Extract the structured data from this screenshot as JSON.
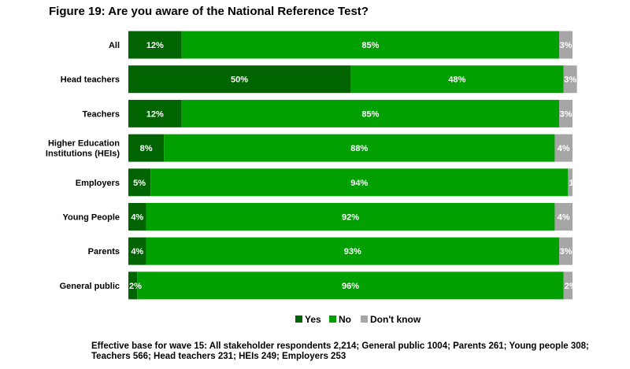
{
  "chart_data": {
    "type": "bar",
    "orientation": "horizontal",
    "stacked": true,
    "percent": true,
    "title": "Figure 19: Are you aware of the National Reference Test?",
    "categories": [
      [
        "All"
      ],
      [
        "Head teachers"
      ],
      [
        "Teachers"
      ],
      [
        "Higher Education",
        "Institutions (HEIs)"
      ],
      [
        "Employers"
      ],
      [
        "Young People"
      ],
      [
        "Parents"
      ],
      [
        "General public"
      ]
    ],
    "series": [
      {
        "name": "Yes",
        "color": "#006400",
        "values": [
          12,
          50,
          12,
          8,
          5,
          4,
          4,
          2
        ],
        "labels": [
          "12%",
          "50%",
          "12%",
          "8%",
          "5%",
          "4%",
          "4%",
          "2%"
        ]
      },
      {
        "name": "No",
        "color": "#00a000",
        "values": [
          85,
          48,
          85,
          88,
          94,
          92,
          93,
          96
        ],
        "labels": [
          "85%",
          "48%",
          "85%",
          "88%",
          "94%",
          "92%",
          "93%",
          "96%"
        ]
      },
      {
        "name": "Don't know",
        "color": "#a6a6a6",
        "values": [
          3,
          3,
          3,
          4,
          1,
          4,
          3,
          2
        ],
        "labels": [
          "3%",
          "3%",
          "3%",
          "4%",
          "1%",
          "4%",
          "3%",
          "2%"
        ]
      }
    ],
    "xlim": [
      0,
      100
    ],
    "grid": false,
    "legend_position": "bottom"
  },
  "footnote": "Effective base for wave 15: All stakeholder respondents 2,214; General public 1004; Parents 261; Young people 308; Teachers 566; Head teachers 231; HEIs 249; Employers 253"
}
